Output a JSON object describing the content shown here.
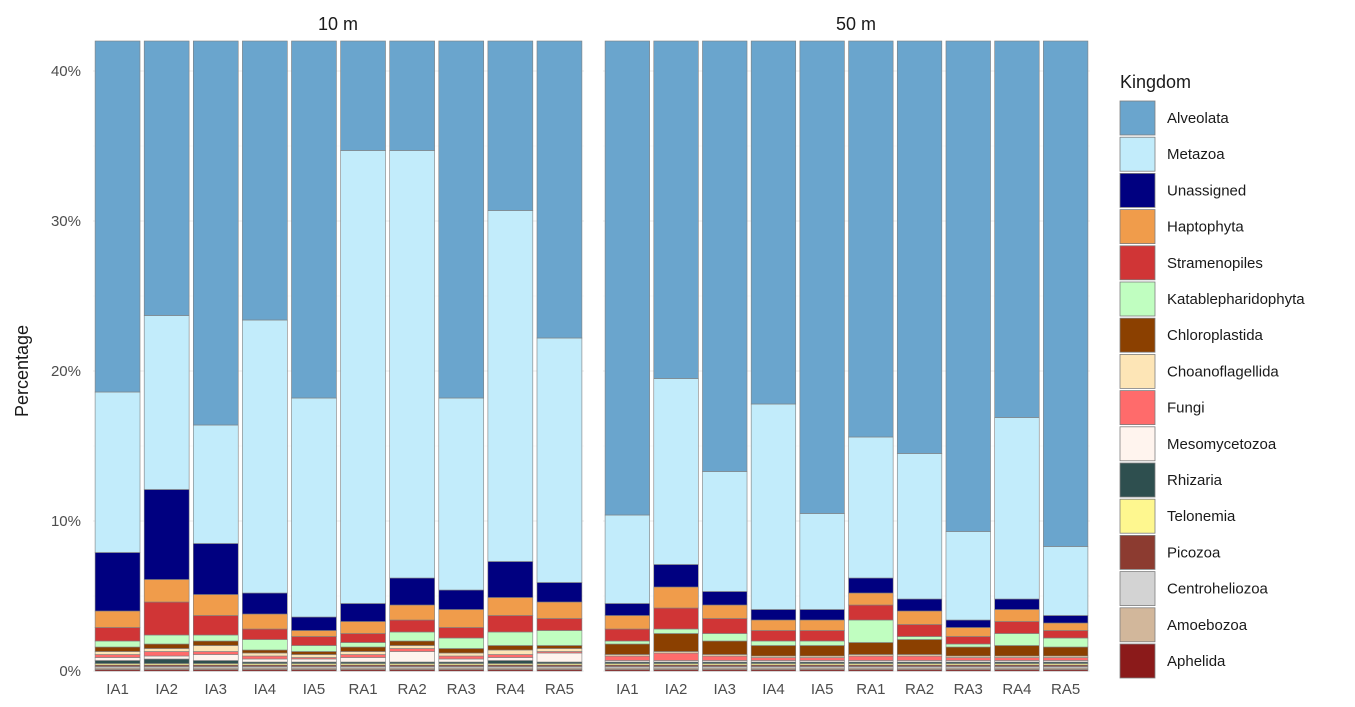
{
  "chart_data": {
    "type": "bar",
    "stacked": true,
    "ylabel": "Percentage",
    "xlabel": "",
    "ylim": [
      0,
      42
    ],
    "yticks": [
      0,
      10,
      20,
      30,
      40
    ],
    "ytick_labels": [
      "0%",
      "10%",
      "20%",
      "30%",
      "40%"
    ],
    "grid": true,
    "legend": {
      "title": "Kingdom",
      "position": "right"
    },
    "categories": [
      "IA1",
      "IA2",
      "IA3",
      "IA4",
      "IA5",
      "RA1",
      "RA2",
      "RA3",
      "RA4",
      "RA5"
    ],
    "kingdoms": [
      {
        "name": "Alveolata",
        "color": "#6aa5cd"
      },
      {
        "name": "Metazoa",
        "color": "#c2ecfb"
      },
      {
        "name": "Unassigned",
        "color": "#000080"
      },
      {
        "name": "Haptophyta",
        "color": "#f09c4b"
      },
      {
        "name": "Stramenopiles",
        "color": "#d03536"
      },
      {
        "name": "Katablepharidophyta",
        "color": "#c0fec0"
      },
      {
        "name": "Chloroplastida",
        "color": "#8b4000"
      },
      {
        "name": "Choanoflagellida",
        "color": "#fde5b6"
      },
      {
        "name": "Fungi",
        "color": "#ff6b6b"
      },
      {
        "name": "Mesomycetozoa",
        "color": "#fff4ee"
      },
      {
        "name": "Rhizaria",
        "color": "#2e4f4f"
      },
      {
        "name": "Telonemia",
        "color": "#fef78f"
      },
      {
        "name": "Picozoa",
        "color": "#8c3b30"
      },
      {
        "name": "Centroheliozoa",
        "color": "#d3d3d3"
      },
      {
        "name": "Amoebozoa",
        "color": "#d2b79b"
      },
      {
        "name": "Aphelida",
        "color": "#8b1a1a"
      }
    ],
    "panels": [
      {
        "title": "10 m",
        "series": [
          {
            "name": "Alveolata",
            "values": [
              24.2,
              18.5,
              25.9,
              19.3,
              24.4,
              7.7,
              7.5,
              24.3,
              11.3,
              20.2
            ]
          },
          {
            "name": "Metazoa",
            "values": [
              10.7,
              11.6,
              7.9,
              18.2,
              14.6,
              30.2,
              28.5,
              12.8,
              23.4,
              16.3
            ]
          },
          {
            "name": "Unassigned",
            "values": [
              3.9,
              6.0,
              3.4,
              1.4,
              0.9,
              1.2,
              1.8,
              1.3,
              2.4,
              1.3
            ]
          },
          {
            "name": "Haptophyta",
            "values": [
              1.1,
              1.5,
              1.4,
              1.0,
              0.4,
              0.8,
              1.0,
              1.2,
              1.2,
              1.1
            ]
          },
          {
            "name": "Stramenopiles",
            "values": [
              0.9,
              2.2,
              1.3,
              0.7,
              0.6,
              0.6,
              0.8,
              0.7,
              1.1,
              0.8
            ]
          },
          {
            "name": "Katablepharidophyta",
            "values": [
              0.4,
              0.6,
              0.4,
              0.7,
              0.4,
              0.3,
              0.6,
              0.7,
              0.9,
              1.0
            ]
          },
          {
            "name": "Chloroplastida",
            "values": [
              0.3,
              0.3,
              0.3,
              0.2,
              0.2,
              0.3,
              0.3,
              0.3,
              0.3,
              0.2
            ]
          },
          {
            "name": "Choanoflagellida",
            "values": [
              0.2,
              0.2,
              0.4,
              0.2,
              0.2,
              0.2,
              0.2,
              0.2,
              0.3,
              0.2
            ]
          },
          {
            "name": "Fungi",
            "values": [
              0.2,
              0.3,
              0.2,
              0.2,
              0.1,
              0.2,
              0.2,
              0.2,
              0.2,
              0.1
            ]
          },
          {
            "name": "Mesomycetozoa",
            "values": [
              0.2,
              0.2,
              0.4,
              0.2,
              0.2,
              0.3,
              0.7,
              0.2,
              0.2,
              0.6
            ]
          },
          {
            "name": "Rhizaria",
            "values": [
              0.2,
              0.3,
              0.2,
              0.1,
              0.1,
              0.1,
              0.1,
              0.1,
              0.2,
              0.1
            ]
          },
          {
            "name": "Telonemia",
            "values": [
              0.1,
              0.1,
              0.1,
              0.1,
              0.1,
              0.1,
              0.1,
              0.1,
              0.1,
              0.1
            ]
          },
          {
            "name": "Picozoa",
            "values": [
              0.1,
              0.1,
              0.1,
              0.1,
              0.1,
              0.1,
              0.1,
              0.1,
              0.1,
              0.1
            ]
          },
          {
            "name": "Centroheliozoa",
            "values": [
              0.1,
              0.1,
              0.1,
              0.1,
              0.1,
              0.1,
              0.1,
              0.1,
              0.1,
              0.1
            ]
          },
          {
            "name": "Amoebozoa",
            "values": [
              0.1,
              0.1,
              0.1,
              0.1,
              0.1,
              0.1,
              0.1,
              0.1,
              0.1,
              0.1
            ]
          },
          {
            "name": "Aphelida",
            "values": [
              0.1,
              0.1,
              0.1,
              0.1,
              0.1,
              0.1,
              0.1,
              0.1,
              0.1,
              0.1
            ]
          }
        ]
      },
      {
        "title": "50 m",
        "series": [
          {
            "name": "Alveolata",
            "values": [
              31.9,
              22.6,
              29.0,
              24.7,
              32.0,
              26.7,
              27.8,
              33.4,
              25.4,
              34.1
            ]
          },
          {
            "name": "Metazoa",
            "values": [
              5.9,
              12.4,
              8.0,
              13.7,
              6.4,
              9.4,
              9.7,
              5.9,
              12.1,
              4.6
            ]
          },
          {
            "name": "Unassigned",
            "values": [
              0.8,
              1.5,
              0.9,
              0.7,
              0.7,
              1.0,
              0.8,
              0.5,
              0.7,
              0.5
            ]
          },
          {
            "name": "Haptophyta",
            "values": [
              0.9,
              1.4,
              0.9,
              0.7,
              0.7,
              0.8,
              0.9,
              0.6,
              0.8,
              0.5
            ]
          },
          {
            "name": "Stramenopiles",
            "values": [
              0.8,
              1.4,
              1.0,
              0.7,
              0.7,
              1.0,
              0.8,
              0.5,
              0.8,
              0.5
            ]
          },
          {
            "name": "Katablepharidophyta",
            "values": [
              0.2,
              0.3,
              0.5,
              0.3,
              0.3,
              1.5,
              0.2,
              0.2,
              0.8,
              0.6
            ]
          },
          {
            "name": "Chloroplastida",
            "values": [
              0.7,
              1.2,
              0.9,
              0.7,
              0.7,
              0.8,
              1.0,
              0.6,
              0.7,
              0.6
            ]
          },
          {
            "name": "Choanoflagellida",
            "values": [
              0.1,
              0.1,
              0.1,
              0.1,
              0.1,
              0.1,
              0.1,
              0.1,
              0.1,
              0.1
            ]
          },
          {
            "name": "Fungi",
            "values": [
              0.3,
              0.5,
              0.3,
              0.2,
              0.2,
              0.3,
              0.3,
              0.2,
              0.2,
              0.2
            ]
          },
          {
            "name": "Mesomycetozoa",
            "values": [
              0.1,
              0.1,
              0.1,
              0.1,
              0.1,
              0.1,
              0.1,
              0.1,
              0.1,
              0.1
            ]
          },
          {
            "name": "Rhizaria",
            "values": [
              0.1,
              0.1,
              0.1,
              0.1,
              0.1,
              0.1,
              0.1,
              0.1,
              0.1,
              0.1
            ]
          },
          {
            "name": "Telonemia",
            "values": [
              0.1,
              0.1,
              0.1,
              0.1,
              0.1,
              0.1,
              0.1,
              0.1,
              0.1,
              0.1
            ]
          },
          {
            "name": "Picozoa",
            "values": [
              0.1,
              0.1,
              0.1,
              0.1,
              0.1,
              0.1,
              0.1,
              0.1,
              0.1,
              0.1
            ]
          },
          {
            "name": "Centroheliozoa",
            "values": [
              0.1,
              0.1,
              0.1,
              0.1,
              0.1,
              0.1,
              0.1,
              0.1,
              0.1,
              0.1
            ]
          },
          {
            "name": "Amoebozoa",
            "values": [
              0.1,
              0.1,
              0.1,
              0.1,
              0.1,
              0.1,
              0.1,
              0.1,
              0.1,
              0.1
            ]
          },
          {
            "name": "Aphelida",
            "values": [
              0.1,
              0.1,
              0.1,
              0.1,
              0.1,
              0.1,
              0.1,
              0.1,
              0.1,
              0.1
            ]
          }
        ]
      }
    ]
  }
}
